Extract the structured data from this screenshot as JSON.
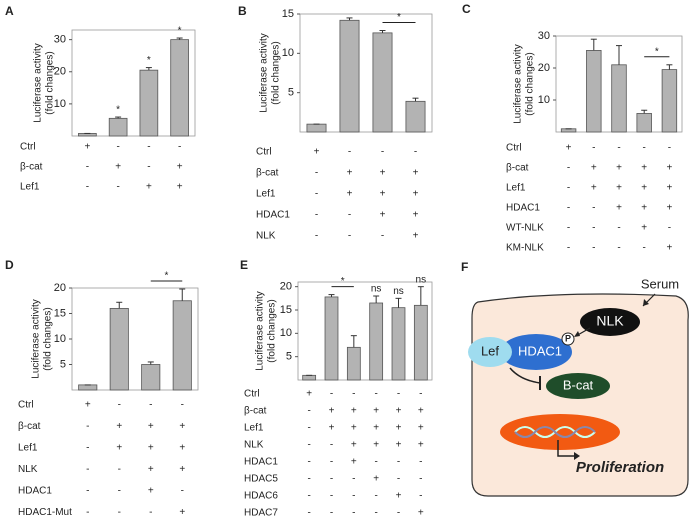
{
  "chart_data": [
    {
      "type": "bar",
      "panel": "A",
      "y_label": [
        "Luciferase activity",
        "(fold changes)"
      ],
      "color": "#b3b3b3",
      "values": [
        0.8,
        5.5,
        20.5,
        30
      ],
      "errors": [
        0,
        0.4,
        0.8,
        0.5
      ],
      "markers": [
        null,
        "*",
        "*",
        "*"
      ],
      "ylim": [
        0,
        33
      ],
      "yticks": [
        10,
        20,
        30
      ],
      "conditions": [
        {
          "label": "Ctrl",
          "signs": [
            "+",
            "-",
            "-",
            "-"
          ]
        },
        {
          "label": "β-cat",
          "signs": [
            "-",
            "+",
            "-",
            "+"
          ]
        },
        {
          "label": "Lef1",
          "signs": [
            "-",
            "-",
            "+",
            "+"
          ]
        }
      ]
    },
    {
      "type": "bar",
      "panel": "B",
      "y_label": [
        "Luciferase activity",
        "(fold changes)"
      ],
      "color": "#b3b3b3",
      "values": [
        1.0,
        14.2,
        12.6,
        3.9
      ],
      "errors": [
        0,
        0.3,
        0.3,
        0.4
      ],
      "brackets": [
        {
          "label": "*",
          "bars": [
            2,
            3
          ]
        }
      ],
      "ylim": [
        0,
        15
      ],
      "yticks": [
        5,
        10,
        15
      ],
      "conditions": [
        {
          "label": "Ctrl",
          "signs": [
            "+",
            "-",
            "-",
            "-"
          ]
        },
        {
          "label": "β-cat",
          "signs": [
            "-",
            "+",
            "+",
            "+"
          ]
        },
        {
          "label": "Lef1",
          "signs": [
            "-",
            "+",
            "+",
            "+"
          ]
        },
        {
          "label": "HDAC1",
          "signs": [
            "-",
            "-",
            "+",
            "+"
          ]
        },
        {
          "label": "NLK",
          "signs": [
            "-",
            "-",
            "-",
            "+"
          ]
        }
      ]
    },
    {
      "type": "bar",
      "panel": "C",
      "y_label": [
        "Luciferase activity",
        "(fold changes)"
      ],
      "color": "#b3b3b3",
      "values": [
        1.0,
        25.5,
        21,
        5.8,
        19.5
      ],
      "errors": [
        0,
        3.5,
        6,
        1,
        1.5
      ],
      "brackets": [
        {
          "label": "*",
          "bars": [
            3,
            4
          ]
        }
      ],
      "ylim": [
        0,
        30
      ],
      "yticks": [
        10,
        20,
        30
      ],
      "conditions": [
        {
          "label": "Ctrl",
          "signs": [
            "+",
            "-",
            "-",
            "-",
            "-"
          ]
        },
        {
          "label": "β-cat",
          "signs": [
            "-",
            "+",
            "+",
            "+",
            "+"
          ]
        },
        {
          "label": "Lef1",
          "signs": [
            "-",
            "+",
            "+",
            "+",
            "+"
          ]
        },
        {
          "label": "HDAC1",
          "signs": [
            "-",
            "-",
            "+",
            "+",
            "+"
          ]
        },
        {
          "label": "WT-NLK",
          "signs": [
            "-",
            "-",
            "-",
            "+",
            "-"
          ]
        },
        {
          "label": "KM-NLK",
          "signs": [
            "-",
            "-",
            "-",
            "-",
            "+"
          ]
        }
      ]
    },
    {
      "type": "bar",
      "panel": "D",
      "y_label": [
        "Luciferase activity",
        "(fold changes)"
      ],
      "color": "#b3b3b3",
      "values": [
        1.0,
        16,
        5,
        17.5
      ],
      "errors": [
        0,
        1.2,
        0.5,
        2.3
      ],
      "brackets": [
        {
          "label": "*",
          "bars": [
            2,
            3
          ]
        }
      ],
      "ylim": [
        0,
        20
      ],
      "yticks": [
        5,
        10,
        15,
        20
      ],
      "conditions": [
        {
          "label": "Ctrl",
          "signs": [
            "+",
            "-",
            "-",
            "-"
          ]
        },
        {
          "label": "β-cat",
          "signs": [
            "-",
            "+",
            "+",
            "+"
          ]
        },
        {
          "label": "Lef1",
          "signs": [
            "-",
            "+",
            "+",
            "+"
          ]
        },
        {
          "label": "NLK",
          "signs": [
            "-",
            "-",
            "+",
            "+"
          ]
        },
        {
          "label": "HDAC1",
          "signs": [
            "-",
            "-",
            "+",
            "-"
          ]
        },
        {
          "label": "HDAC1-Mut",
          "signs": [
            "-",
            "-",
            "-",
            "+"
          ]
        }
      ]
    },
    {
      "type": "bar",
      "panel": "E",
      "y_label": [
        "Luciferase activity",
        "(fold changes)"
      ],
      "color": "#b3b3b3",
      "values": [
        1.0,
        17.8,
        7,
        16.5,
        15.5,
        16
      ],
      "errors": [
        0,
        0.5,
        2.5,
        1.5,
        2,
        4
      ],
      "markers": [
        null,
        null,
        null,
        "ns",
        "ns",
        "ns"
      ],
      "brackets": [
        {
          "label": "*",
          "bars": [
            1,
            2
          ]
        }
      ],
      "ylim": [
        0,
        21
      ],
      "yticks": [
        5,
        10,
        15,
        20
      ],
      "conditions": [
        {
          "label": "Ctrl",
          "signs": [
            "+",
            "-",
            "-",
            "-",
            "-",
            "-"
          ]
        },
        {
          "label": "β-cat",
          "signs": [
            "-",
            "+",
            "+",
            "+",
            "+",
            "+"
          ]
        },
        {
          "label": "Lef1",
          "signs": [
            "-",
            "+",
            "+",
            "+",
            "+",
            "+"
          ]
        },
        {
          "label": "NLK",
          "signs": [
            "-",
            "-",
            "+",
            "+",
            "+",
            "+"
          ]
        },
        {
          "label": "HDAC1",
          "signs": [
            "-",
            "-",
            "+",
            "-",
            "-",
            "-"
          ]
        },
        {
          "label": "HDAC5",
          "signs": [
            "-",
            "-",
            "-",
            "+",
            "-",
            "-"
          ]
        },
        {
          "label": "HDAC6",
          "signs": [
            "-",
            "-",
            "-",
            "-",
            "+",
            "-"
          ]
        },
        {
          "label": "HDAC7",
          "signs": [
            "-",
            "-",
            "-",
            "-",
            "-",
            "+"
          ]
        }
      ]
    }
  ],
  "diagram": {
    "panel": "F",
    "serum": "Serum",
    "nlk": "NLK",
    "phospho": "P",
    "lef": "Lef",
    "hdac1": "HDAC1",
    "bcat": "B-cat",
    "proliferation": "Proliferation"
  }
}
